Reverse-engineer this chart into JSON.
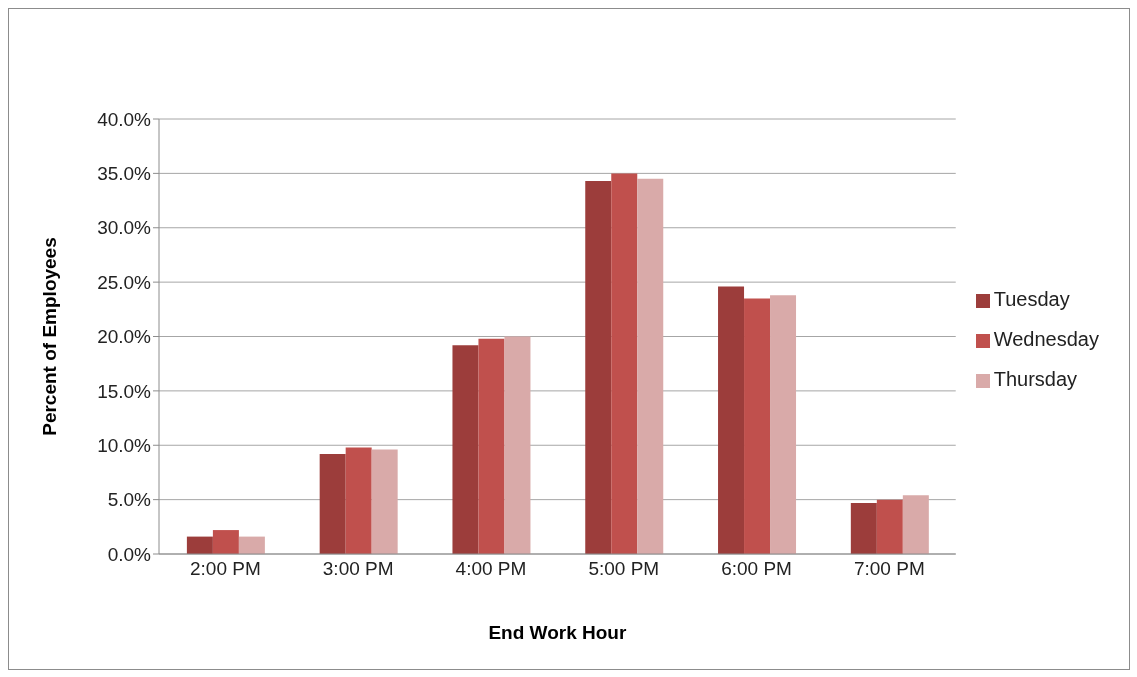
{
  "chart_data": {
    "type": "bar",
    "xlabel": "End Work Hour",
    "ylabel": "Percent of Employees",
    "categories": [
      "2:00 PM",
      "3:00 PM",
      "4:00 PM",
      "5:00 PM",
      "6:00 PM",
      "7:00 PM"
    ],
    "series": [
      {
        "name": "Tuesday",
        "color": "#9c3d3b",
        "values": [
          1.6,
          9.2,
          19.2,
          34.3,
          24.6,
          4.7
        ]
      },
      {
        "name": "Wednesday",
        "color": "#c0504d",
        "values": [
          2.2,
          9.8,
          19.8,
          35.0,
          23.5,
          5.0
        ]
      },
      {
        "name": "Thursday",
        "color": "#d9aaa9",
        "values": [
          1.6,
          9.6,
          20.0,
          34.5,
          23.8,
          5.4
        ]
      }
    ],
    "ylim": [
      0,
      40
    ],
    "yticks": [
      {
        "value": 0,
        "label": "0.0%"
      },
      {
        "value": 5,
        "label": "5.0%"
      },
      {
        "value": 10,
        "label": "10.0%"
      },
      {
        "value": 15,
        "label": "15.0%"
      },
      {
        "value": 20,
        "label": "20.0%"
      },
      {
        "value": 25,
        "label": "25.0%"
      },
      {
        "value": 30,
        "label": "30.0%"
      },
      {
        "value": 35,
        "label": "35.0%"
      },
      {
        "value": 40,
        "label": "40.0%"
      }
    ],
    "grid": "y",
    "legend": "right"
  }
}
